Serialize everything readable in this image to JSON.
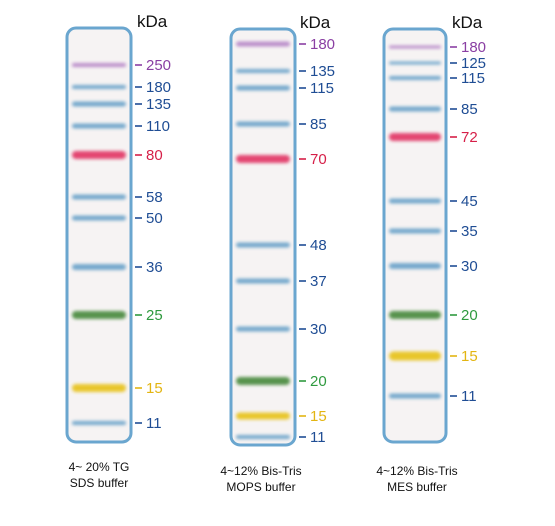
{
  "unit": "kDa",
  "colors": {
    "blue": "#1f4d94",
    "purple": "#8a3fa3",
    "red": "#d61f48",
    "green": "#2f9a3f",
    "yellow": "#e3b512",
    "lane_border": "#6aa6cf",
    "lane_fill": "#f6f3f3"
  },
  "panels": [
    {
      "caption_line1": "4~ 20% TG",
      "caption_line2": "SDS buffer",
      "bands": [
        {
          "label": "250",
          "color": "purple"
        },
        {
          "label": "180",
          "color": "blue"
        },
        {
          "label": "135",
          "color": "blue"
        },
        {
          "label": "110",
          "color": "blue"
        },
        {
          "label": "80",
          "color": "red"
        },
        {
          "label": "58",
          "color": "blue"
        },
        {
          "label": "50",
          "color": "blue"
        },
        {
          "label": "36",
          "color": "blue"
        },
        {
          "label": "25",
          "color": "green"
        },
        {
          "label": "15",
          "color": "yellow"
        },
        {
          "label": "11",
          "color": "blue"
        }
      ]
    },
    {
      "caption_line1": "4~12% Bis-Tris",
      "caption_line2": "MOPS buffer",
      "bands": [
        {
          "label": "180",
          "color": "purple"
        },
        {
          "label": "135",
          "color": "blue"
        },
        {
          "label": "115",
          "color": "blue"
        },
        {
          "label": "85",
          "color": "blue"
        },
        {
          "label": "70",
          "color": "red"
        },
        {
          "label": "48",
          "color": "blue"
        },
        {
          "label": "37",
          "color": "blue"
        },
        {
          "label": "30",
          "color": "blue"
        },
        {
          "label": "20",
          "color": "green"
        },
        {
          "label": "15",
          "color": "yellow"
        },
        {
          "label": "11",
          "color": "blue"
        }
      ]
    },
    {
      "caption_line1": "4~12% Bis-Tris",
      "caption_line2": "MES buffer",
      "bands": [
        {
          "label": "180",
          "color": "purple"
        },
        {
          "label": "125",
          "color": "blue"
        },
        {
          "label": "115",
          "color": "blue"
        },
        {
          "label": "85",
          "color": "blue"
        },
        {
          "label": "72",
          "color": "red"
        },
        {
          "label": "45",
          "color": "blue"
        },
        {
          "label": "35",
          "color": "blue"
        },
        {
          "label": "30",
          "color": "blue"
        },
        {
          "label": "20",
          "color": "green"
        },
        {
          "label": "15",
          "color": "yellow"
        },
        {
          "label": "11",
          "color": "blue"
        }
      ]
    }
  ]
}
